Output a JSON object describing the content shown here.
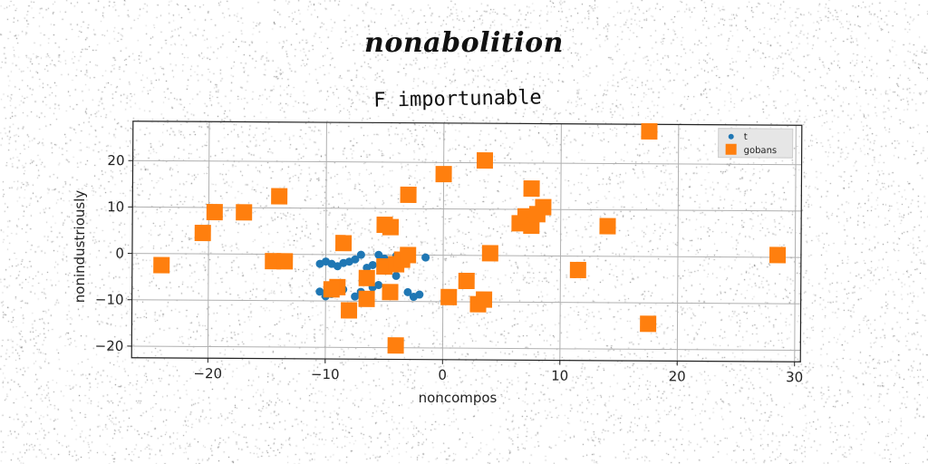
{
  "suptitle": "nonabolition",
  "chart_data": {
    "type": "scatter",
    "title": "F importunable",
    "xlabel": "noncompos",
    "ylabel": "nonindustriously",
    "xlim": [
      -26.5,
      30.5
    ],
    "ylim": [
      -22.5,
      28.5
    ],
    "xticks": [
      -20,
      -10,
      0,
      10,
      20,
      30
    ],
    "yticks": [
      -20,
      -10,
      0,
      10,
      20
    ],
    "xtick_labels": [
      "−20",
      "−10",
      "0",
      "10",
      "20",
      "30"
    ],
    "ytick_labels": [
      "−20",
      "−10",
      "0",
      "10",
      "20"
    ],
    "grid": true,
    "legend_position": "top-right",
    "series": [
      {
        "name": "t",
        "color": "#1f77b4",
        "marker": "circle",
        "points": [
          [
            -10.5,
            -2
          ],
          [
            -10,
            -1.5
          ],
          [
            -9.5,
            -2
          ],
          [
            -9,
            -2.5
          ],
          [
            -8.5,
            -1.8
          ],
          [
            -8,
            -1.5
          ],
          [
            -7.5,
            -1
          ],
          [
            -7,
            0
          ],
          [
            -6.5,
            -2.8
          ],
          [
            -6,
            -2.2
          ],
          [
            -5.5,
            0
          ],
          [
            -5,
            -0.8
          ],
          [
            -4.5,
            -1.5
          ],
          [
            -4,
            -0.2
          ],
          [
            -3.5,
            -2
          ],
          [
            -10.5,
            -8
          ],
          [
            -10,
            -9
          ],
          [
            -9.5,
            -8.5
          ],
          [
            -8.5,
            -7.5
          ],
          [
            -7.5,
            -9
          ],
          [
            -7,
            -8
          ],
          [
            -6,
            -7
          ],
          [
            -5.5,
            -6.5
          ],
          [
            -3,
            -8
          ],
          [
            -2.5,
            -9
          ],
          [
            -2,
            -8.5
          ],
          [
            -1.5,
            -0.5
          ],
          [
            -4,
            -4.5
          ],
          [
            -5,
            -3
          ]
        ]
      },
      {
        "name": "gobans",
        "color": "#ff7f0e",
        "marker": "square",
        "points": [
          [
            -24,
            -2.5
          ],
          [
            -19.5,
            9
          ],
          [
            -20.5,
            4.5
          ],
          [
            -17,
            9
          ],
          [
            -14,
            12.5
          ],
          [
            -14.5,
            -1.5
          ],
          [
            -13.5,
            -1.5
          ],
          [
            -8.5,
            2.5
          ],
          [
            -9,
            -7
          ],
          [
            -9.5,
            -7.5
          ],
          [
            -8,
            -12
          ],
          [
            -6.5,
            -5
          ],
          [
            -6.5,
            -9.5
          ],
          [
            -5,
            6.5
          ],
          [
            -4.5,
            6
          ],
          [
            -5,
            -2.5
          ],
          [
            -4,
            -2
          ],
          [
            -3.5,
            -1
          ],
          [
            -3,
            0
          ],
          [
            -4.5,
            -8
          ],
          [
            -3,
            13
          ],
          [
            -4,
            -19.5
          ],
          [
            0,
            17.5
          ],
          [
            3.5,
            20.5
          ],
          [
            0.5,
            -9
          ],
          [
            2,
            -5.5
          ],
          [
            3,
            -10.5
          ],
          [
            3.5,
            -9.5
          ],
          [
            4,
            0.5
          ],
          [
            6.5,
            7
          ],
          [
            7,
            8.5
          ],
          [
            7.5,
            14.5
          ],
          [
            7.5,
            6.5
          ],
          [
            8,
            9
          ],
          [
            8.5,
            10.5
          ],
          [
            11.5,
            -3
          ],
          [
            14,
            6.5
          ],
          [
            17.5,
            27
          ],
          [
            17.5,
            -14.5
          ],
          [
            28.5,
            0.5
          ]
        ]
      }
    ]
  }
}
